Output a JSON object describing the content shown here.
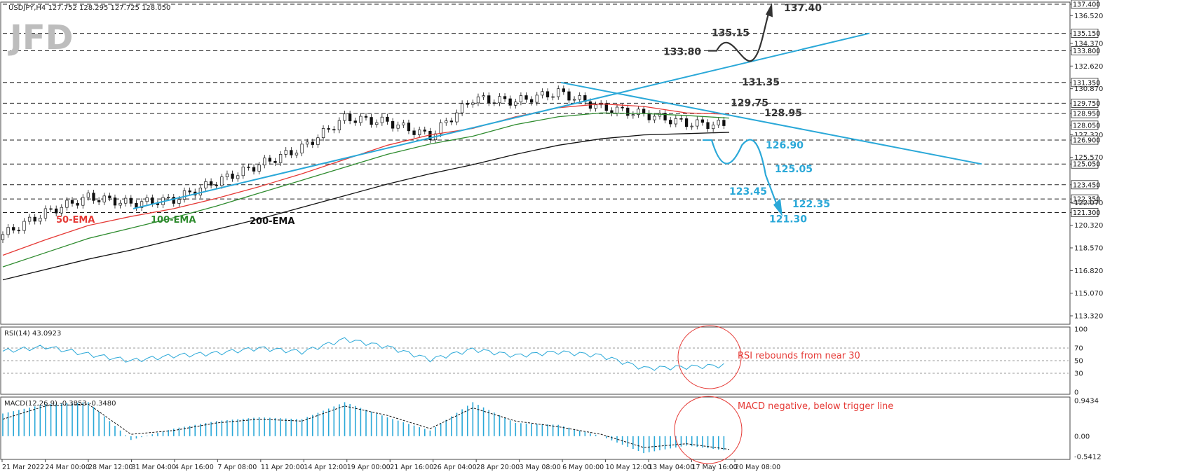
{
  "header": {
    "symbol_line": "USDJPY,H4  127.752 128.295 127.725 128.050"
  },
  "logo": {
    "text": "JFD"
  },
  "colors": {
    "price_box_red": "#e00000",
    "ema50": "#e53935",
    "ema100": "#2e8b2e",
    "ema200": "#111111",
    "trendline": "#2aa8d8",
    "scenario_down": "#2aa8d8",
    "scenario_up": "#333333",
    "rsi": "#2aa8d8",
    "macd_hist": "#2aa8d8",
    "macd_signal": "#111111",
    "circle": "#e53935"
  },
  "chart_data": {
    "type": "line",
    "title": "",
    "price_axis": {
      "min": 113.32,
      "max": 137.4,
      "ticks": [
        "137.400",
        "136.520",
        "135.150",
        "134.370",
        "133.800",
        "132.620",
        "131.350",
        "130.870",
        "129.750",
        "128.950",
        "128.050",
        "127.320",
        "126.900",
        "125.570",
        "125.050",
        "123.450",
        "122.350",
        "122.070",
        "121.300",
        "120.320",
        "118.570",
        "116.820",
        "115.070",
        "113.320"
      ],
      "boxed_levels": [
        "137.400",
        "135.150",
        "133.800",
        "131.350",
        "129.750",
        "128.950",
        "128.050",
        "126.900",
        "125.050",
        "123.450",
        "122.350",
        "121.300"
      ]
    },
    "time_axis": {
      "labels": [
        "21 Mar 2022",
        "24 Mar 00:00",
        "28 Mar 12:00",
        "31 Mar 04:00",
        "4 Apr 16:00",
        "7 Apr 08:00",
        "11 Apr 20:00",
        "14 Apr 12:00",
        "19 Apr 00:00",
        "21 Apr 16:00",
        "26 Apr 04:00",
        "28 Apr 20:00",
        "3 May 08:00",
        "6 May 00:00",
        "10 May 12:00",
        "13 May 04:00",
        "17 May 16:00",
        "20 May 08:00"
      ]
    },
    "series": [
      {
        "name": "50-EMA",
        "values": [
          118.0,
          119.2,
          120.3,
          121.0,
          121.6,
          122.4,
          123.3,
          124.3,
          125.4,
          126.5,
          127.3,
          127.8,
          128.7,
          129.4,
          129.7,
          129.5,
          129.0,
          128.9
        ]
      },
      {
        "name": "100-EMA",
        "values": [
          117.1,
          118.2,
          119.3,
          120.1,
          120.9,
          121.8,
          122.8,
          123.8,
          124.8,
          125.8,
          126.6,
          127.2,
          128.1,
          128.7,
          129.0,
          128.95,
          128.8,
          128.6
        ]
      },
      {
        "name": "200-EMA",
        "values": [
          116.1,
          116.9,
          117.7,
          118.4,
          119.2,
          120.0,
          120.8,
          121.7,
          122.6,
          123.5,
          124.3,
          125.0,
          125.8,
          126.5,
          127.0,
          127.3,
          127.4,
          127.5
        ]
      }
    ],
    "close_prices": [
      119.6,
      121.3,
      122.5,
      122.0,
      122.3,
      123.7,
      125.0,
      126.3,
      128.6,
      128.3,
      127.2,
      130.1,
      129.9,
      130.6,
      129.4,
      128.9,
      128.2,
      128.05
    ],
    "horizontal_levels": [
      137.4,
      135.15,
      133.8,
      131.35,
      129.75,
      128.95,
      126.9,
      125.05,
      123.45,
      122.35,
      121.3
    ],
    "annotations": {
      "ema50": "50-EMA",
      "ema100": "100-EMA",
      "ema200": "200-EMA",
      "up_levels": [
        {
          "text": "137.40",
          "value": 137.4
        },
        {
          "text": "135.15",
          "value": 135.15
        },
        {
          "text": "133.80",
          "value": 133.8
        },
        {
          "text": "131.35",
          "value": 131.35
        },
        {
          "text": "129.75",
          "value": 129.75
        },
        {
          "text": "128.95",
          "value": 128.95
        }
      ],
      "down_levels": [
        {
          "text": "126.90",
          "value": 126.9
        },
        {
          "text": "125.05",
          "value": 125.05
        },
        {
          "text": "123.45",
          "value": 123.45
        },
        {
          "text": "122.35",
          "value": 122.35
        },
        {
          "text": "121.30",
          "value": 121.3
        }
      ]
    },
    "rsi": {
      "label": "RSI(14) 43.0923",
      "axis_ticks": [
        "100",
        "70",
        "50",
        "30",
        "0"
      ],
      "levels": [
        70,
        50,
        30
      ],
      "values": [
        65,
        72,
        60,
        50,
        58,
        62,
        70,
        64,
        84,
        72,
        52,
        68,
        58,
        64,
        58,
        38,
        40,
        43
      ],
      "note": "RSI rebounds from near 30"
    },
    "macd": {
      "label": "MACD(12,26,9) -0.3853 -0.3480",
      "axis_ticks": [
        "0.9434",
        "0.00",
        "-0.5412"
      ],
      "histogram": [
        0.6,
        0.85,
        0.9,
        -0.1,
        0.2,
        0.4,
        0.5,
        0.45,
        0.9,
        0.5,
        0.15,
        0.9,
        0.35,
        0.3,
        0.0,
        -0.45,
        -0.25,
        -0.39
      ],
      "signal": [
        0.45,
        0.8,
        0.85,
        0.05,
        0.15,
        0.35,
        0.45,
        0.4,
        0.8,
        0.55,
        0.2,
        0.75,
        0.4,
        0.25,
        0.05,
        -0.3,
        -0.2,
        -0.35
      ],
      "note": "MACD negative, below trigger line"
    }
  }
}
